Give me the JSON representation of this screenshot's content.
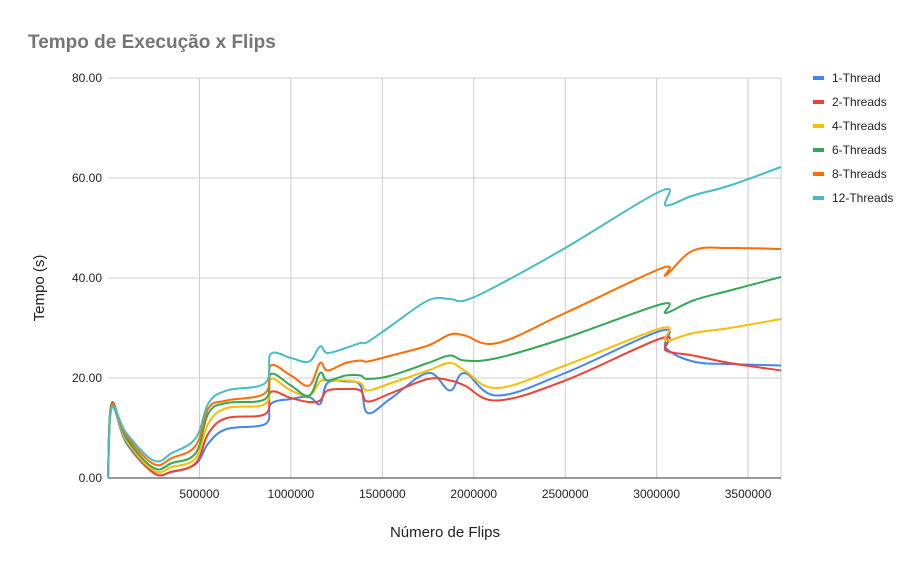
{
  "chart_data": {
    "type": "line",
    "title": "Tempo de Execução x Flips",
    "xlabel": "Número de Flips",
    "ylabel": "Tempo (s)",
    "xlim": [
      0,
      3680000
    ],
    "ylim": [
      0,
      80
    ],
    "x_ticks": [
      500000,
      1000000,
      1500000,
      2000000,
      2500000,
      3000000,
      3500000
    ],
    "x_tick_labels": [
      "500000",
      "1000000",
      "1500000",
      "2000000",
      "2500000",
      "3000000",
      "3500000"
    ],
    "y_ticks": [
      0,
      20,
      40,
      60,
      80
    ],
    "y_tick_labels": [
      "0.00",
      "20.00",
      "40.00",
      "60.00",
      "80.00"
    ],
    "grid": true,
    "legend_position": "right",
    "x": [
      0,
      20000,
      100000,
      250000,
      350000,
      480000,
      550000,
      650000,
      860000,
      890000,
      1000000,
      1100000,
      1160000,
      1200000,
      1300000,
      1380000,
      1420000,
      1550000,
      1750000,
      1870000,
      1950000,
      2130000,
      2500000,
      3030000,
      3050000,
      3200000,
      3400000,
      3680000
    ],
    "series": [
      {
        "name": "1-Thread",
        "color": "#4285F4",
        "values": [
          0,
          14.2,
          7.0,
          1.0,
          1.2,
          2.8,
          7.0,
          9.8,
          10.8,
          14.8,
          15.8,
          16.2,
          14.8,
          19.0,
          19.3,
          18.5,
          13.0,
          16.0,
          21.0,
          17.5,
          21.0,
          16.5,
          21.0,
          29.5,
          26.0,
          23.3,
          22.8,
          22.5
        ]
      },
      {
        "name": "2-Threads",
        "color": "#EA4335",
        "values": [
          0,
          15.0,
          7.5,
          1.0,
          1.3,
          3.0,
          9.0,
          12.0,
          12.8,
          17.2,
          16.0,
          15.2,
          15.5,
          17.5,
          17.8,
          17.5,
          15.3,
          17.0,
          19.8,
          19.5,
          18.5,
          15.5,
          19.5,
          28.0,
          25.5,
          24.5,
          23.0,
          21.5
        ]
      },
      {
        "name": "4-Threads",
        "color": "#FBBC04",
        "values": [
          0,
          14.5,
          7.5,
          1.5,
          2.2,
          4.0,
          11.0,
          14.0,
          14.8,
          19.8,
          17.5,
          16.5,
          19.3,
          19.5,
          19.5,
          19.0,
          17.5,
          19.0,
          21.5,
          23.0,
          21.5,
          18.0,
          22.5,
          30.0,
          27.5,
          29.0,
          30.0,
          31.8
        ]
      },
      {
        "name": "6-Threads",
        "color": "#34A853",
        "values": [
          0,
          14.8,
          8.0,
          2.0,
          3.0,
          5.0,
          13.0,
          15.0,
          15.8,
          20.8,
          18.5,
          16.5,
          21.0,
          19.5,
          20.5,
          20.5,
          19.8,
          20.5,
          23.0,
          24.5,
          23.5,
          24.0,
          28.0,
          34.8,
          33.0,
          35.5,
          37.5,
          40.2
        ]
      },
      {
        "name": "8-Threads",
        "color": "#FF6D01",
        "values": [
          0,
          14.5,
          8.5,
          2.8,
          4.0,
          6.5,
          14.0,
          15.5,
          17.0,
          22.5,
          20.5,
          18.5,
          23.0,
          21.5,
          23.0,
          23.5,
          23.3,
          24.5,
          26.5,
          28.7,
          28.5,
          27.0,
          33.0,
          42.0,
          40.5,
          45.5,
          46.0,
          45.8
        ]
      },
      {
        "name": "12-Threads",
        "color": "#46BDC6",
        "values": [
          0,
          14.0,
          9.0,
          3.5,
          5.0,
          8.0,
          15.0,
          17.5,
          19.0,
          24.8,
          24.0,
          23.3,
          26.3,
          25.0,
          26.0,
          27.0,
          27.2,
          30.5,
          35.5,
          35.8,
          35.5,
          38.5,
          46.0,
          57.5,
          54.5,
          56.5,
          58.5,
          62.2
        ]
      }
    ]
  }
}
